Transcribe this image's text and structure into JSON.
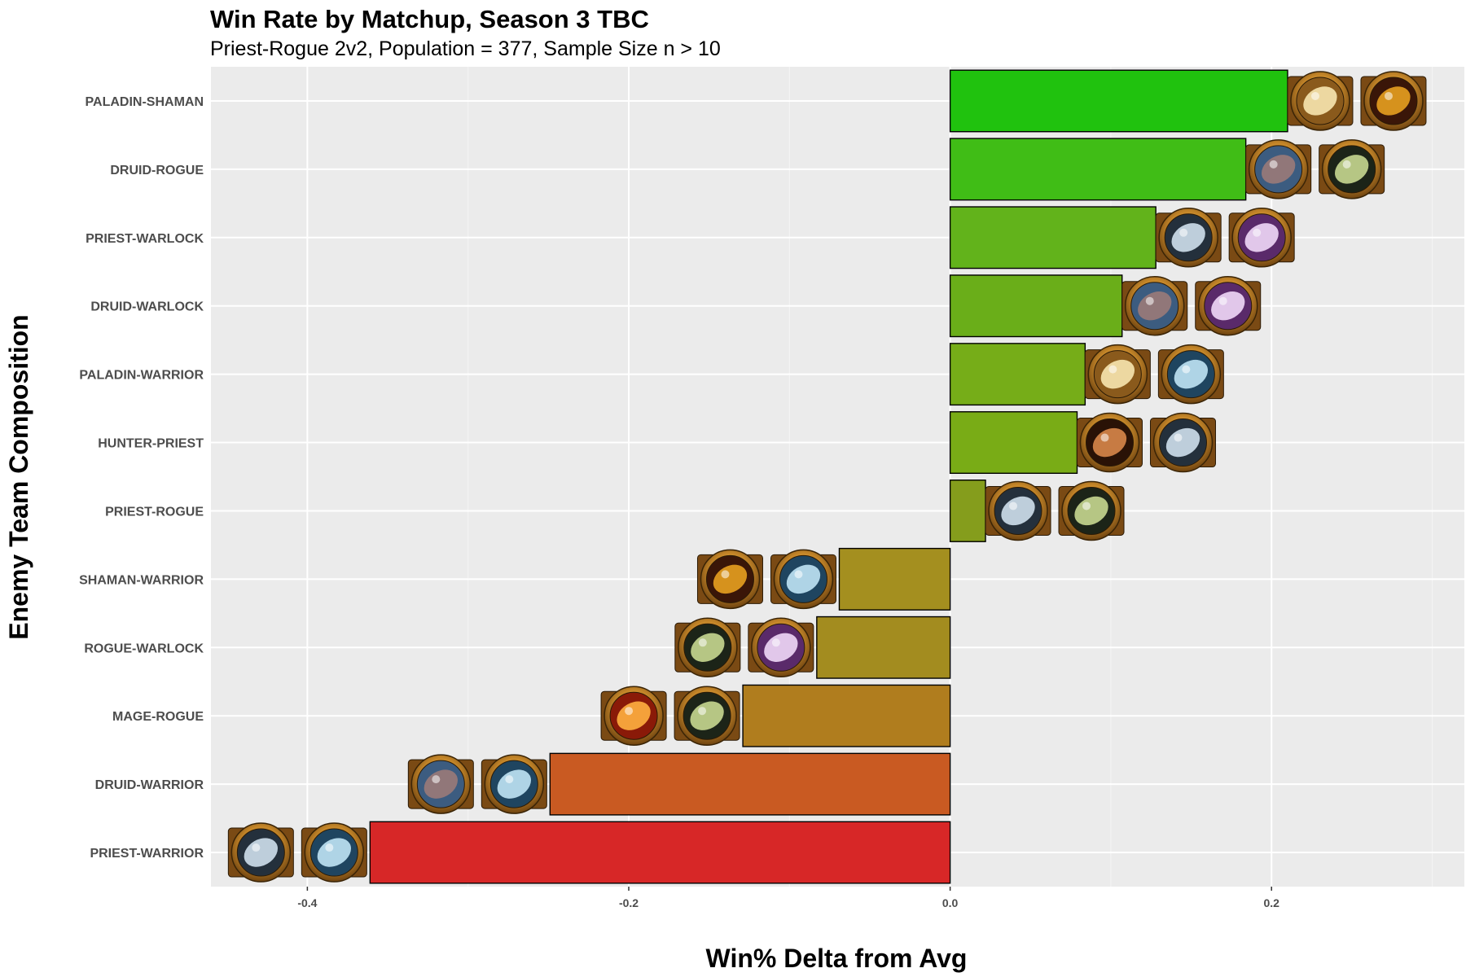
{
  "chart_data": {
    "type": "bar",
    "orientation": "horizontal",
    "title": "Win Rate by Matchup, Season 3 TBC",
    "subtitle": "Priest-Rogue 2v2, Population = 377, Sample Size n > 10",
    "xlabel": "Win% Delta from Avg",
    "ylabel": "Enemy Team Composition",
    "xlim": [
      -0.46,
      0.32
    ],
    "xticks": [
      -0.4,
      -0.2,
      0.0,
      0.2
    ],
    "xtick_labels": [
      "-0.4",
      "-0.2",
      "0.0",
      "0.2"
    ],
    "grid": true,
    "legend": "none",
    "categories": [
      "PALADIN-SHAMAN",
      "DRUID-ROGUE",
      "PRIEST-WARLOCK",
      "DRUID-WARLOCK",
      "PALADIN-WARRIOR",
      "HUNTER-PRIEST",
      "PRIEST-ROGUE",
      "SHAMAN-WARRIOR",
      "ROGUE-WARLOCK",
      "MAGE-ROGUE",
      "DRUID-WARRIOR",
      "PRIEST-WARRIOR"
    ],
    "values": [
      0.21,
      0.184,
      0.128,
      0.107,
      0.084,
      0.079,
      0.022,
      -0.069,
      -0.083,
      -0.129,
      -0.249,
      -0.361
    ],
    "colors": [
      "#20c20e",
      "#40bd16",
      "#62b31b",
      "#6aae19",
      "#76ad18",
      "#79ac16",
      "#859d1c",
      "#a48f1f",
      "#a38c1f",
      "#b07d1e",
      "#c95a22",
      "#d72727"
    ],
    "icons": [
      [
        "paladin-icon",
        "shaman-icon"
      ],
      [
        "druid-icon",
        "rogue-icon"
      ],
      [
        "priest-icon",
        "warlock-icon"
      ],
      [
        "druid-icon",
        "warlock-icon"
      ],
      [
        "paladin-icon",
        "warrior-icon"
      ],
      [
        "hunter-icon",
        "priest-icon"
      ],
      [
        "priest-icon",
        "rogue-icon"
      ],
      [
        "shaman-icon",
        "warrior-icon"
      ],
      [
        "rogue-icon",
        "warlock-icon"
      ],
      [
        "mage-icon",
        "rogue-icon"
      ],
      [
        "druid-icon",
        "warrior-icon"
      ],
      [
        "priest-icon",
        "warrior-icon"
      ]
    ]
  }
}
